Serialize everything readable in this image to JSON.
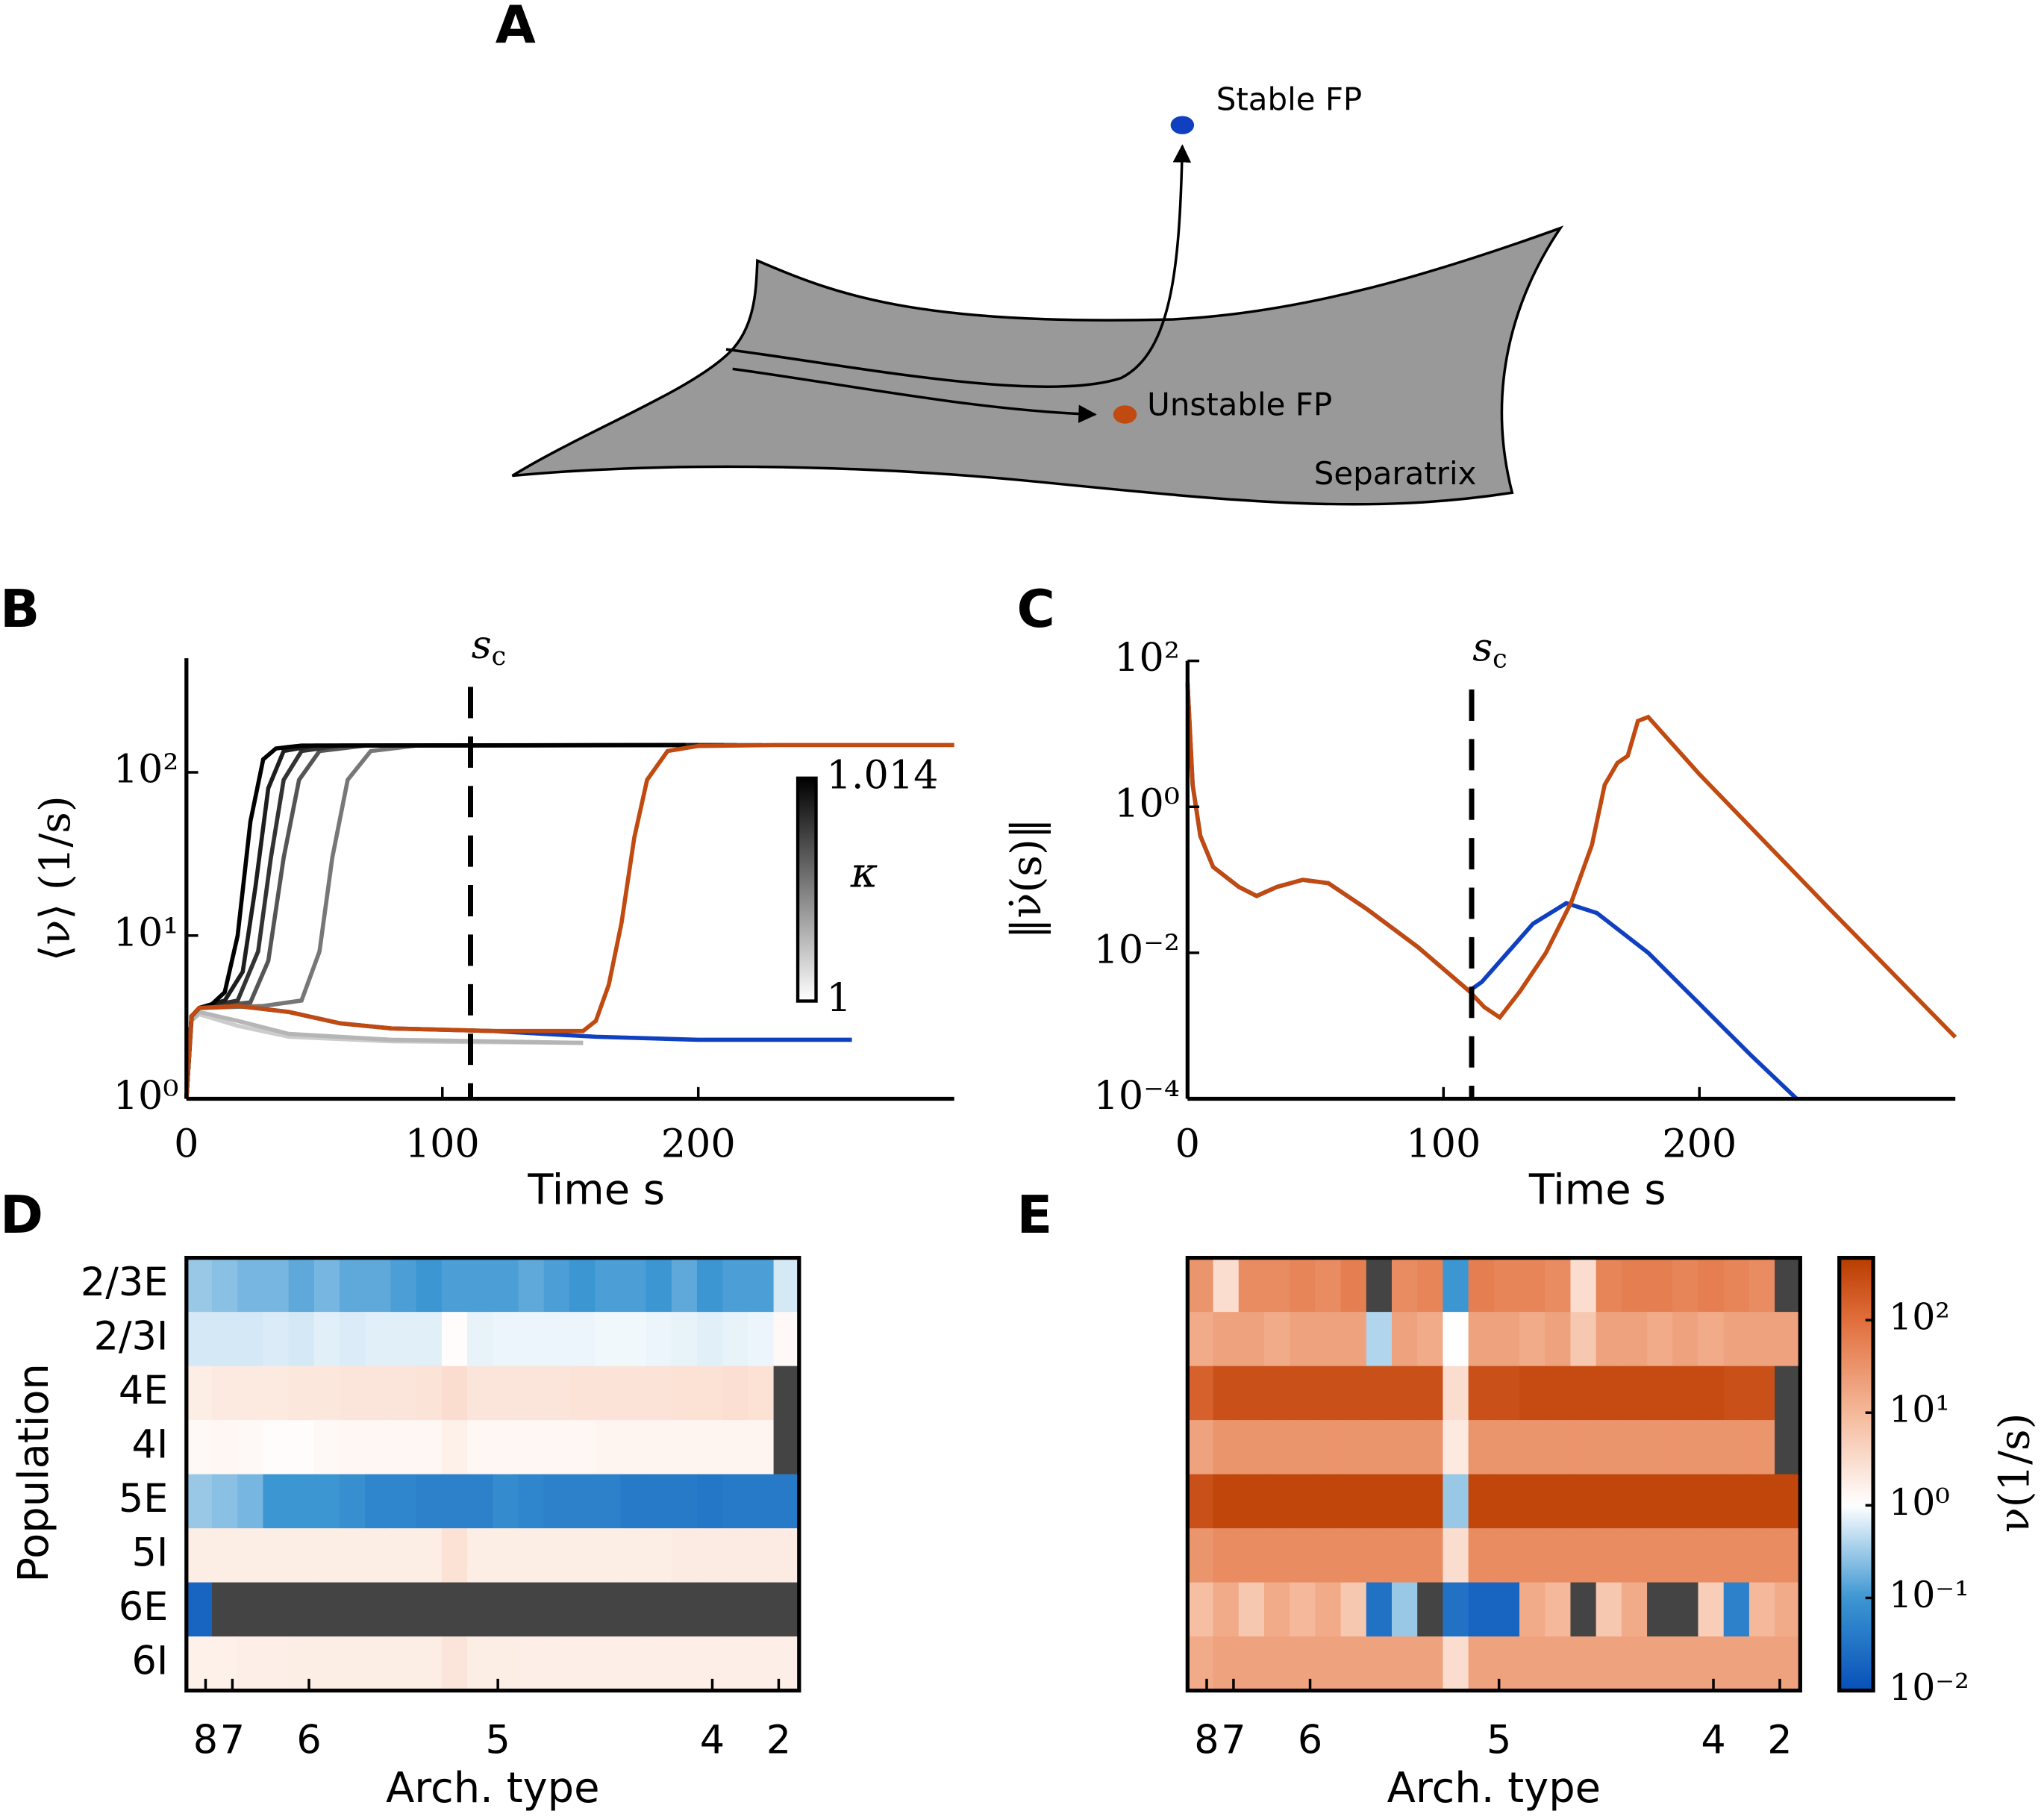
{
  "panel_a": {
    "letter": "A",
    "stable": "Stable FP",
    "unstable": "Unstable FP",
    "surface": "Separatrix"
  },
  "chart_data": [
    {
      "type": "line",
      "letter": "B",
      "xlabel": "Time s",
      "ylabel": "⟨ν⟩ (1/s)",
      "log_y": true,
      "xlim": [
        0,
        300
      ],
      "xticks": [
        0,
        100,
        200
      ],
      "ylim": [
        1,
        500
      ],
      "yticks": [
        {
          "value": 1,
          "label": "10⁰"
        },
        {
          "value": 10,
          "label": "10¹"
        },
        {
          "value": 100,
          "label": "10²"
        }
      ],
      "vline": 111,
      "vline_label": "sc",
      "colorbar": {
        "label": "κ",
        "lim": [
          1,
          1.014
        ],
        "ticks": [
          1.014,
          1
        ]
      },
      "series": [
        {
          "color": "#cccccc",
          "x": [
            0,
            2,
            5,
            20,
            40,
            80,
            155
          ],
          "values": [
            1,
            3,
            3.3,
            2.8,
            2.4,
            2.25,
            2.2
          ]
        },
        {
          "color": "#b5b5b5",
          "x": [
            0,
            2,
            5,
            20,
            40,
            80,
            155
          ],
          "values": [
            1,
            3,
            3.4,
            3,
            2.5,
            2.3,
            2.2
          ]
        },
        {
          "color": "#1040c0",
          "x": [
            0,
            2,
            5,
            20,
            40,
            60,
            80,
            120,
            160,
            200,
            260
          ],
          "values": [
            1,
            3.2,
            3.6,
            3.7,
            3.4,
            2.9,
            2.7,
            2.6,
            2.4,
            2.3,
            2.3
          ]
        },
        {
          "color": "#777777",
          "x": [
            0,
            2,
            5,
            30,
            45,
            52,
            57,
            63,
            72,
            90,
            225
          ],
          "values": [
            1,
            3.2,
            3.6,
            3.7,
            4,
            8,
            30,
            90,
            135,
            146,
            147
          ]
        },
        {
          "color": "#555555",
          "x": [
            0,
            2,
            5,
            25,
            32,
            38,
            44,
            52,
            70,
            215
          ],
          "values": [
            1,
            3.2,
            3.6,
            3.9,
            7,
            30,
            90,
            135,
            146,
            147
          ]
        },
        {
          "color": "#333333",
          "x": [
            0,
            2,
            5,
            20,
            28,
            33,
            38,
            45,
            60,
            210
          ],
          "values": [
            1,
            3.2,
            3.6,
            4,
            8,
            30,
            90,
            135,
            146,
            147
          ]
        },
        {
          "color": "#1e1e1e",
          "x": [
            0,
            2,
            5,
            15,
            22,
            27,
            32,
            38,
            50,
            200
          ],
          "values": [
            1,
            3.2,
            3.6,
            4,
            6,
            20,
            80,
            135,
            146,
            147
          ]
        },
        {
          "color": "#000000",
          "x": [
            0,
            2,
            5,
            10,
            15,
            20,
            25,
            30,
            35,
            45,
            195
          ],
          "values": [
            1,
            3.2,
            3.6,
            3.8,
            4.5,
            10,
            50,
            120,
            140,
            146,
            147
          ]
        },
        {
          "color": "#c04a10",
          "x": [
            0,
            2,
            5,
            20,
            40,
            60,
            80,
            120,
            155,
            160,
            165,
            170,
            175,
            180,
            188,
            200,
            230,
            300
          ],
          "values": [
            1,
            3.2,
            3.6,
            3.7,
            3.4,
            2.9,
            2.7,
            2.6,
            2.6,
            3,
            5,
            12,
            40,
            90,
            135,
            145,
            147,
            147
          ]
        }
      ]
    },
    {
      "type": "line",
      "letter": "C",
      "xlabel": "Time s",
      "ylabel": "‖ν̇(s)‖",
      "log_y": true,
      "xlim": [
        0,
        300
      ],
      "xticks": [
        0,
        100,
        200
      ],
      "ylim": [
        0.0001,
        100
      ],
      "yticks": [
        {
          "value": 0.0001,
          "label": "10⁻⁴"
        },
        {
          "value": 0.01,
          "label": "10⁻²"
        },
        {
          "value": 1,
          "label": "10⁰"
        },
        {
          "value": 100,
          "label": "10²"
        }
      ],
      "vline": 111,
      "vline_label": "sc",
      "series": [
        {
          "color": "#1040c0",
          "x": [
            0,
            2,
            5,
            10,
            20,
            27,
            35,
            45,
            55,
            70,
            90,
            110,
            115,
            125,
            135,
            148,
            160,
            180,
            200,
            220,
            238
          ],
          "values": [
            50,
            2,
            0.4,
            0.15,
            0.08,
            0.06,
            0.08,
            0.1,
            0.09,
            0.04,
            0.012,
            0.003,
            0.004,
            0.01,
            0.025,
            0.048,
            0.035,
            0.01,
            0.002,
            0.0004,
            0.0001
          ]
        },
        {
          "color": "#c04a10",
          "x": [
            0,
            2,
            5,
            10,
            20,
            27,
            35,
            45,
            55,
            70,
            90,
            110,
            116,
            122,
            130,
            140,
            150,
            158,
            163,
            168,
            172,
            176,
            180,
            200,
            250,
            300
          ],
          "values": [
            50,
            2,
            0.4,
            0.15,
            0.08,
            0.06,
            0.08,
            0.1,
            0.09,
            0.04,
            0.012,
            0.003,
            0.0018,
            0.0013,
            0.003,
            0.01,
            0.05,
            0.3,
            2,
            4,
            5,
            15,
            17,
            2.8,
            0.043,
            0.0007
          ]
        }
      ]
    },
    {
      "type": "heatmap",
      "letter": "D",
      "xlabel": "Arch. type",
      "ylabel": "Population",
      "rows": [
        "2/3E",
        "2/3I",
        "4E",
        "4I",
        "5E",
        "5I",
        "6E",
        "6I"
      ],
      "xticks": [
        {
          "value": 0.75,
          "label": "8"
        },
        {
          "value": 1.8,
          "label": "7"
        },
        {
          "value": 4.8,
          "label": "6"
        },
        {
          "value": 12.2,
          "label": "5"
        },
        {
          "value": 20.6,
          "label": "4"
        },
        {
          "value": 23.2,
          "label": "2"
        }
      ],
      "values": [
        [
          0.3,
          0.25,
          0.2,
          0.2,
          0.15,
          0.2,
          0.15,
          0.15,
          0.12,
          0.1,
          0.12,
          0.12,
          0.12,
          0.15,
          0.12,
          0.1,
          0.12,
          0.12,
          0.1,
          0.15,
          0.1,
          0.12,
          0.12,
          0.6
        ],
        [
          0.6,
          0.6,
          0.6,
          0.65,
          0.6,
          0.7,
          0.65,
          0.7,
          0.7,
          0.7,
          1.1,
          0.75,
          0.8,
          0.8,
          0.8,
          0.8,
          0.85,
          0.85,
          0.8,
          0.75,
          0.7,
          0.75,
          0.8,
          1.2
        ],
        [
          1.8,
          2,
          2,
          2,
          2.2,
          2.2,
          2.3,
          2.3,
          2.3,
          2.5,
          3,
          2.3,
          2.3,
          2.3,
          2.3,
          2.5,
          2.5,
          2.5,
          2.5,
          2.6,
          2.6,
          2.8,
          2.6,
          null
        ],
        [
          1.2,
          1.3,
          1.2,
          1.1,
          1.1,
          1.2,
          1.3,
          1.3,
          1.3,
          1.3,
          1.6,
          1.3,
          1.3,
          1.3,
          1.3,
          1.3,
          1.4,
          1.4,
          1.4,
          1.4,
          1.4,
          1.4,
          1.4,
          null
        ],
        [
          0.3,
          0.25,
          0.2,
          0.1,
          0.1,
          0.1,
          0.08,
          0.06,
          0.06,
          0.05,
          0.05,
          0.05,
          0.07,
          0.06,
          0.05,
          0.05,
          0.05,
          0.04,
          0.04,
          0.04,
          0.035,
          0.04,
          0.04,
          0.04
        ],
        [
          1.8,
          1.8,
          1.8,
          1.8,
          1.8,
          1.8,
          1.8,
          1.8,
          1.8,
          1.8,
          2.6,
          1.8,
          1.8,
          1.8,
          1.8,
          1.8,
          1.8,
          1.8,
          1.8,
          1.9,
          1.9,
          1.9,
          1.9,
          1.9
        ],
        [
          0.02,
          null,
          null,
          null,
          null,
          null,
          null,
          null,
          null,
          null,
          null,
          null,
          null,
          null,
          null,
          null,
          null,
          null,
          null,
          null,
          null,
          null,
          null,
          null
        ],
        [
          1.6,
          1.6,
          1.7,
          1.7,
          1.8,
          1.8,
          1.8,
          1.8,
          1.8,
          1.8,
          2.3,
          1.8,
          1.8,
          1.7,
          1.7,
          1.7,
          1.7,
          1.7,
          1.7,
          1.7,
          1.7,
          1.7,
          1.7,
          1.7
        ]
      ]
    },
    {
      "type": "heatmap",
      "letter": "E",
      "xlabel": "Arch. type",
      "xticks": [
        {
          "value": 0.75,
          "label": "8"
        },
        {
          "value": 1.8,
          "label": "7"
        },
        {
          "value": 4.8,
          "label": "6"
        },
        {
          "value": 12.2,
          "label": "5"
        },
        {
          "value": 20.6,
          "label": "4"
        },
        {
          "value": 23.2,
          "label": "2"
        }
      ],
      "colorbar": {
        "label": "ν(1/s)",
        "lim": [
          0.01,
          470
        ],
        "ticks": [
          {
            "value": 100,
            "label": "10²"
          },
          {
            "value": 10,
            "label": "10¹"
          },
          {
            "value": 1,
            "label": "10⁰"
          },
          {
            "value": 0.1,
            "label": "10⁻¹"
          },
          {
            "value": 0.01,
            "label": "10⁻²"
          }
        ]
      },
      "values": [
        [
          30,
          3,
          40,
          40,
          50,
          40,
          60,
          null,
          40,
          50,
          0.1,
          60,
          50,
          50,
          40,
          3,
          50,
          60,
          60,
          50,
          60,
          50,
          40,
          null
        ],
        [
          15,
          20,
          20,
          15,
          20,
          20,
          20,
          0.4,
          20,
          15,
          1,
          20,
          20,
          15,
          20,
          6,
          20,
          20,
          15,
          20,
          15,
          20,
          20,
          20
        ],
        [
          150,
          250,
          250,
          250,
          250,
          250,
          250,
          250,
          250,
          250,
          3,
          250,
          250,
          300,
          300,
          300,
          300,
          300,
          300,
          300,
          300,
          250,
          250,
          null
        ],
        [
          20,
          30,
          30,
          30,
          30,
          30,
          30,
          30,
          30,
          30,
          2,
          30,
          30,
          30,
          30,
          30,
          30,
          30,
          30,
          30,
          30,
          30,
          30,
          null
        ],
        [
          250,
          350,
          350,
          350,
          350,
          350,
          350,
          350,
          350,
          350,
          0.3,
          350,
          350,
          350,
          350,
          350,
          350,
          350,
          350,
          350,
          350,
          350,
          350,
          350
        ],
        [
          30,
          40,
          40,
          40,
          40,
          40,
          40,
          40,
          40,
          40,
          3,
          40,
          40,
          40,
          40,
          40,
          40,
          40,
          40,
          40,
          40,
          40,
          40,
          40
        ],
        [
          8,
          15,
          6,
          15,
          10,
          15,
          6,
          0.03,
          0.3,
          null,
          0.03,
          0.02,
          0.02,
          15,
          10,
          null,
          6,
          15,
          null,
          null,
          5,
          0.05,
          10,
          15
        ],
        [
          15,
          20,
          20,
          20,
          20,
          20,
          20,
          20,
          20,
          20,
          3,
          20,
          20,
          20,
          20,
          20,
          20,
          20,
          20,
          20,
          20,
          20,
          20,
          20
        ]
      ]
    }
  ]
}
